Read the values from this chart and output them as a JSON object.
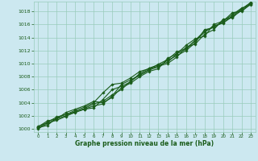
{
  "xlabel": "Graphe pression niveau de la mer (hPa)",
  "hours": [
    0,
    1,
    2,
    3,
    4,
    5,
    6,
    7,
    8,
    9,
    10,
    11,
    12,
    13,
    14,
    15,
    16,
    17,
    18,
    19,
    20,
    21,
    22,
    23
  ],
  "line1": [
    1000.2,
    1000.5,
    1001.7,
    1002.2,
    1002.6,
    1003.0,
    1003.2,
    1004.5,
    1006.0,
    1006.5,
    1007.2,
    1008.5,
    1009.3,
    1009.8,
    1010.2,
    1011.5,
    1012.2,
    1013.5,
    1014.8,
    1015.8,
    1016.2,
    1017.2,
    1018.1,
    1019.2
  ],
  "line2": [
    1000.0,
    1000.8,
    1001.5,
    1002.0,
    1002.5,
    1003.0,
    1003.5,
    1003.8,
    1005.0,
    1006.8,
    1007.5,
    1008.2,
    1009.0,
    1009.5,
    1010.5,
    1011.2,
    1012.0,
    1013.2,
    1015.2,
    1015.5,
    1016.5,
    1017.5,
    1018.5,
    1019.0
  ],
  "line3": [
    1000.1,
    1001.0,
    1001.8,
    1002.2,
    1002.8,
    1003.3,
    1004.0,
    1005.5,
    1006.8,
    1007.0,
    1007.8,
    1008.8,
    1009.2,
    1009.6,
    1010.0,
    1011.0,
    1012.5,
    1013.0,
    1014.5,
    1015.2,
    1016.8,
    1017.0,
    1018.3,
    1019.4
  ],
  "line4": [
    1000.3,
    1001.2,
    1001.5,
    1002.5,
    1003.0,
    1003.5,
    1004.2,
    1004.0,
    1004.8,
    1006.3,
    1007.0,
    1008.0,
    1008.8,
    1009.2,
    1010.8,
    1011.5,
    1012.8,
    1013.8,
    1014.2,
    1016.0,
    1016.5,
    1017.8,
    1018.0,
    1019.1
  ],
  "line5": [
    1000.4,
    1000.9,
    1001.3,
    1001.9,
    1002.6,
    1003.1,
    1003.8,
    1004.2,
    1005.2,
    1006.0,
    1007.3,
    1008.3,
    1009.1,
    1009.9,
    1010.6,
    1011.8,
    1012.3,
    1013.6,
    1015.0,
    1015.6,
    1016.3,
    1017.3,
    1018.4,
    1019.3
  ],
  "bg_color": "#cce8f0",
  "grid_color": "#99ccbb",
  "line_color": "#1a5c1a",
  "marker_color": "#1a5c1a",
  "tick_label_color": "#1a5c1a",
  "xlabel_color": "#1a5c1a",
  "ylim": [
    999.5,
    1019.5
  ],
  "xlim": [
    -0.5,
    23.5
  ],
  "yticks": [
    1000,
    1002,
    1004,
    1006,
    1008,
    1010,
    1012,
    1014,
    1016,
    1018
  ],
  "xticks": [
    0,
    1,
    2,
    3,
    4,
    5,
    6,
    7,
    8,
    9,
    10,
    11,
    12,
    13,
    14,
    15,
    16,
    17,
    18,
    19,
    20,
    21,
    22,
    23
  ]
}
